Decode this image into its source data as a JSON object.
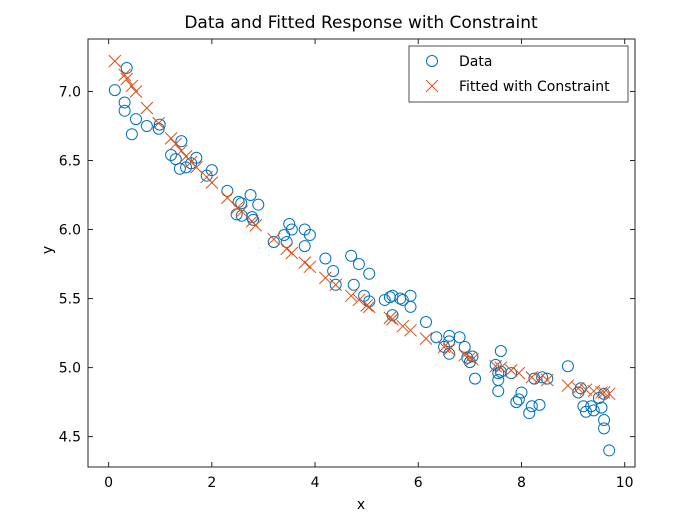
{
  "chart_data": {
    "type": "scatter",
    "title": "Data and Fitted Response with Constraint",
    "xlabel": "x",
    "ylabel": "y",
    "xlim": [
      -0.4,
      10.2
    ],
    "ylim": [
      4.28,
      7.38
    ],
    "xticks": [
      0,
      2,
      4,
      6,
      8,
      10
    ],
    "xtick_labels": [
      "0",
      "2",
      "4",
      "6",
      "8",
      "10"
    ],
    "yticks": [
      4.5,
      5.0,
      5.5,
      6.0,
      6.5,
      7.0
    ],
    "ytick_labels": [
      "4.5",
      "5.0",
      "5.5",
      "6.0",
      "6.5",
      "7.0"
    ],
    "legend_position": "top-right",
    "series": [
      {
        "name": "Data",
        "marker": "circle",
        "color": "#0072BD",
        "x": [
          0.12,
          0.35,
          0.31,
          0.31,
          0.45,
          0.53,
          0.74,
          0.97,
          0.99,
          1.21,
          1.3,
          1.38,
          1.41,
          1.5,
          1.6,
          1.7,
          1.9,
          2.0,
          2.3,
          2.48,
          2.52,
          2.57,
          2.58,
          2.75,
          2.78,
          2.8,
          2.9,
          3.2,
          3.4,
          3.45,
          3.5,
          3.55,
          3.8,
          3.8,
          3.9,
          4.2,
          4.35,
          4.4,
          4.7,
          4.75,
          4.85,
          4.95,
          5.05,
          5.05,
          5.35,
          5.45,
          5.5,
          5.5,
          5.65,
          5.7,
          5.85,
          5.85,
          6.15,
          6.35,
          6.5,
          6.6,
          6.6,
          6.6,
          6.8,
          6.9,
          6.95,
          7.0,
          7.1,
          7.05,
          7.5,
          7.55,
          7.55,
          7.55,
          7.6,
          7.6,
          7.8,
          7.9,
          7.95,
          8.0,
          8.15,
          8.2,
          8.25,
          8.35,
          8.4,
          8.5,
          8.9,
          9.1,
          9.15,
          9.2,
          9.25,
          9.35,
          9.4,
          9.5,
          9.55,
          9.6,
          9.6,
          9.6,
          9.7
        ],
        "y": [
          7.01,
          7.17,
          6.92,
          6.86,
          6.69,
          6.8,
          6.75,
          6.73,
          6.76,
          6.54,
          6.51,
          6.44,
          6.64,
          6.45,
          6.48,
          6.52,
          6.39,
          6.43,
          6.28,
          6.11,
          6.2,
          6.19,
          6.1,
          6.25,
          6.09,
          6.07,
          6.18,
          5.91,
          5.96,
          5.91,
          6.04,
          6.0,
          6.0,
          5.88,
          5.96,
          5.79,
          5.7,
          5.6,
          5.81,
          5.6,
          5.75,
          5.52,
          5.68,
          5.48,
          5.49,
          5.51,
          5.38,
          5.52,
          5.5,
          5.49,
          5.44,
          5.52,
          5.33,
          5.22,
          5.15,
          5.19,
          5.23,
          5.1,
          5.22,
          5.15,
          5.07,
          5.04,
          4.92,
          5.08,
          5.02,
          4.96,
          4.91,
          4.83,
          5.12,
          4.97,
          4.96,
          4.75,
          4.77,
          4.82,
          4.67,
          4.72,
          4.92,
          4.73,
          4.93,
          4.92,
          5.01,
          4.82,
          4.85,
          4.72,
          4.68,
          4.72,
          4.69,
          4.78,
          4.71,
          4.62,
          4.56,
          4.81,
          4.4
        ]
      },
      {
        "name": "Fitted with Constraint",
        "marker": "x",
        "color": "#D95319",
        "x": [
          0.12,
          0.31,
          0.35,
          0.45,
          0.53,
          0.74,
          0.97,
          1.21,
          1.3,
          1.41,
          1.5,
          1.6,
          1.7,
          1.9,
          2.0,
          2.3,
          2.5,
          2.58,
          2.78,
          2.85,
          3.2,
          3.45,
          3.55,
          3.8,
          3.9,
          4.2,
          4.4,
          4.7,
          4.85,
          5.0,
          5.05,
          5.45,
          5.5,
          5.7,
          5.85,
          6.15,
          6.5,
          6.6,
          6.9,
          7.0,
          7.05,
          7.5,
          7.6,
          7.8,
          7.95,
          8.2,
          8.35,
          8.5,
          8.9,
          9.1,
          9.25,
          9.4,
          9.55,
          9.6,
          9.7
        ],
        "y": [
          7.22,
          7.12,
          7.09,
          7.04,
          7.0,
          6.88,
          6.77,
          6.66,
          6.62,
          6.57,
          6.53,
          6.49,
          6.45,
          6.38,
          6.34,
          6.23,
          6.16,
          6.13,
          6.06,
          6.03,
          5.93,
          5.86,
          5.83,
          5.76,
          5.73,
          5.65,
          5.6,
          5.52,
          5.49,
          5.45,
          5.44,
          5.36,
          5.35,
          5.3,
          5.27,
          5.21,
          5.15,
          5.13,
          5.09,
          5.07,
          5.06,
          5.01,
          5.0,
          4.98,
          4.96,
          4.93,
          4.92,
          4.91,
          4.87,
          4.85,
          4.84,
          4.83,
          4.82,
          4.82,
          4.81
        ]
      }
    ]
  }
}
